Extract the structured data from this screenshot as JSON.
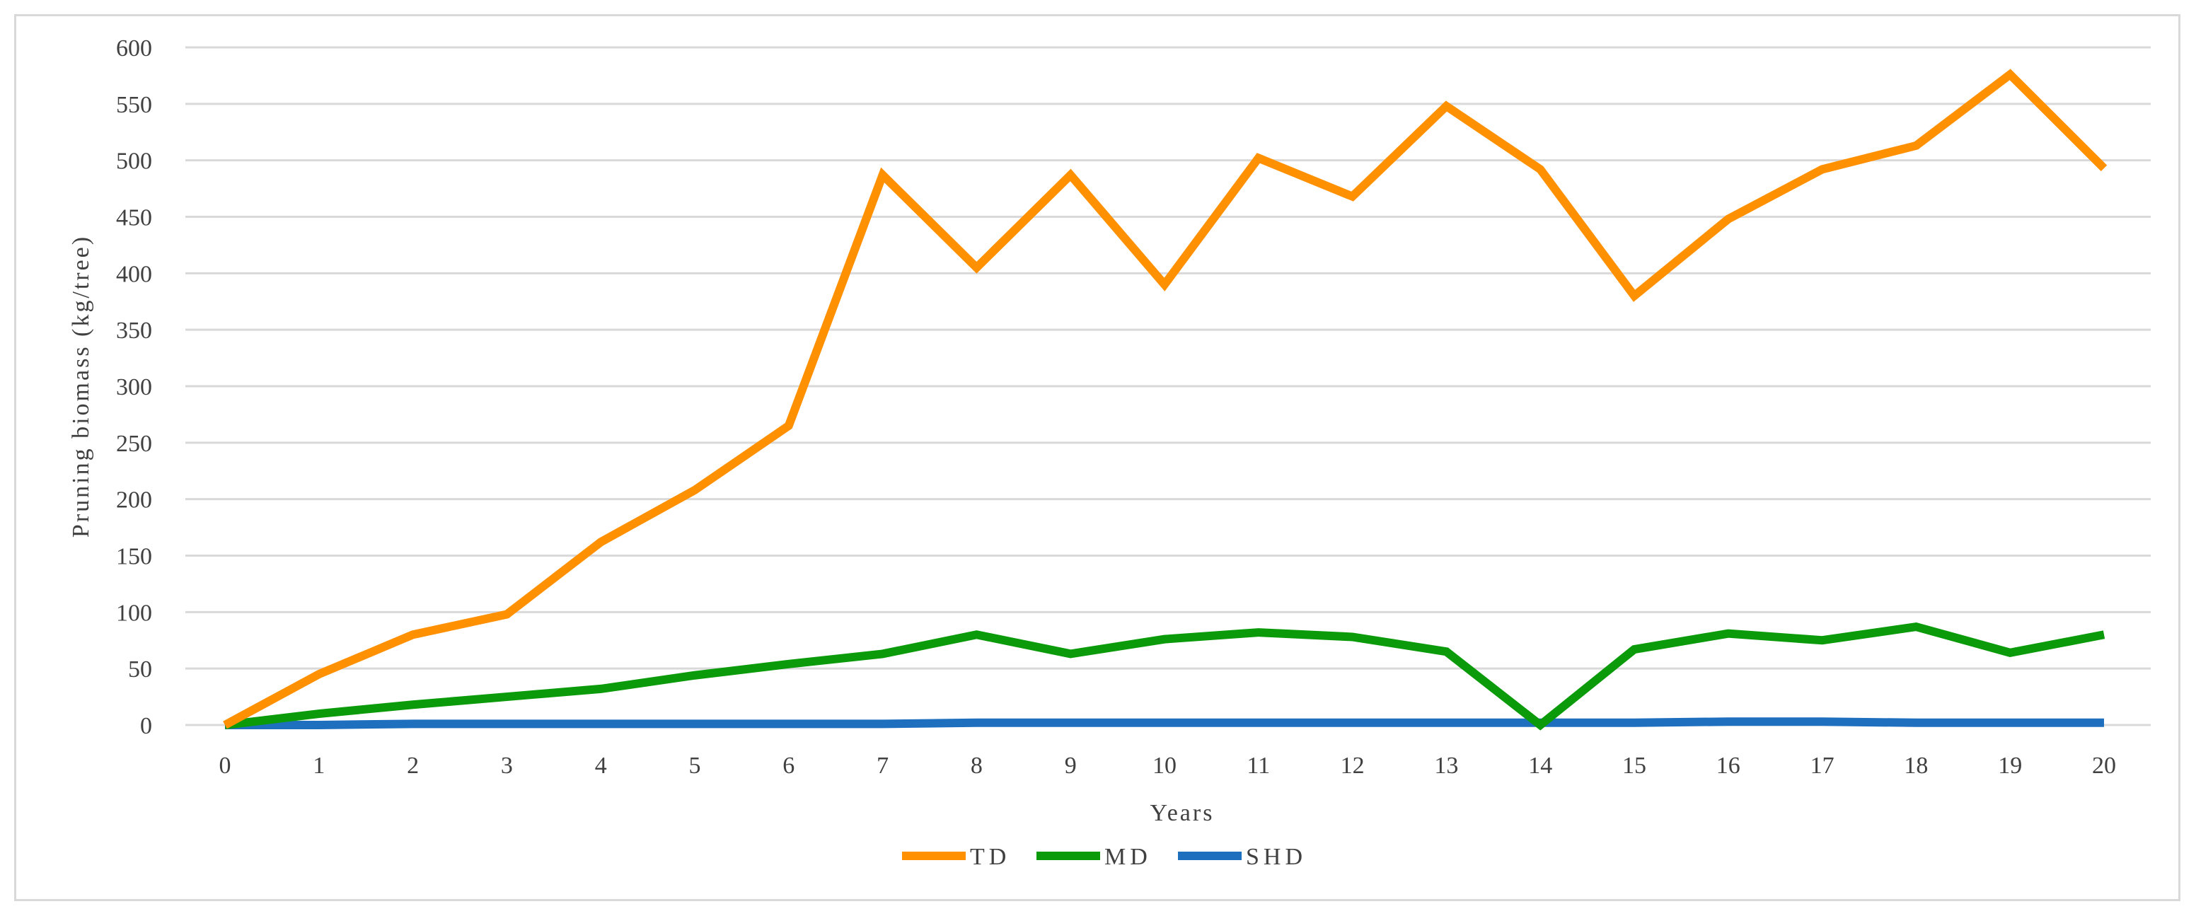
{
  "chart_data": {
    "type": "line",
    "title": "",
    "xlabel": "Years",
    "ylabel": "Pruning biomass (kg/tree)",
    "x": [
      0,
      1,
      2,
      3,
      4,
      5,
      6,
      7,
      8,
      9,
      10,
      11,
      12,
      13,
      14,
      15,
      16,
      17,
      18,
      19,
      20
    ],
    "ylim": [
      0,
      600
    ],
    "yticks": [
      0,
      50,
      100,
      150,
      200,
      250,
      300,
      350,
      400,
      450,
      500,
      550,
      600
    ],
    "grid": true,
    "legend_position": "bottom",
    "series": [
      {
        "name": "TD",
        "color": "#ff9000",
        "values": [
          0,
          45,
          80,
          98,
          162,
          208,
          265,
          487,
          405,
          487,
          390,
          502,
          468,
          548,
          492,
          380,
          448,
          492,
          513,
          576,
          493
        ]
      },
      {
        "name": "MD",
        "color": "#0a9a0a",
        "values": [
          0,
          10,
          18,
          25,
          32,
          44,
          54,
          63,
          80,
          63,
          76,
          82,
          78,
          65,
          0,
          67,
          81,
          75,
          87,
          64,
          80
        ]
      },
      {
        "name": "SHD",
        "color": "#1f6fbf",
        "values": [
          0,
          0,
          1,
          1,
          1,
          1,
          1,
          1,
          2,
          2,
          2,
          2,
          2,
          2,
          2,
          2,
          3,
          3,
          2,
          2,
          2
        ]
      }
    ]
  }
}
